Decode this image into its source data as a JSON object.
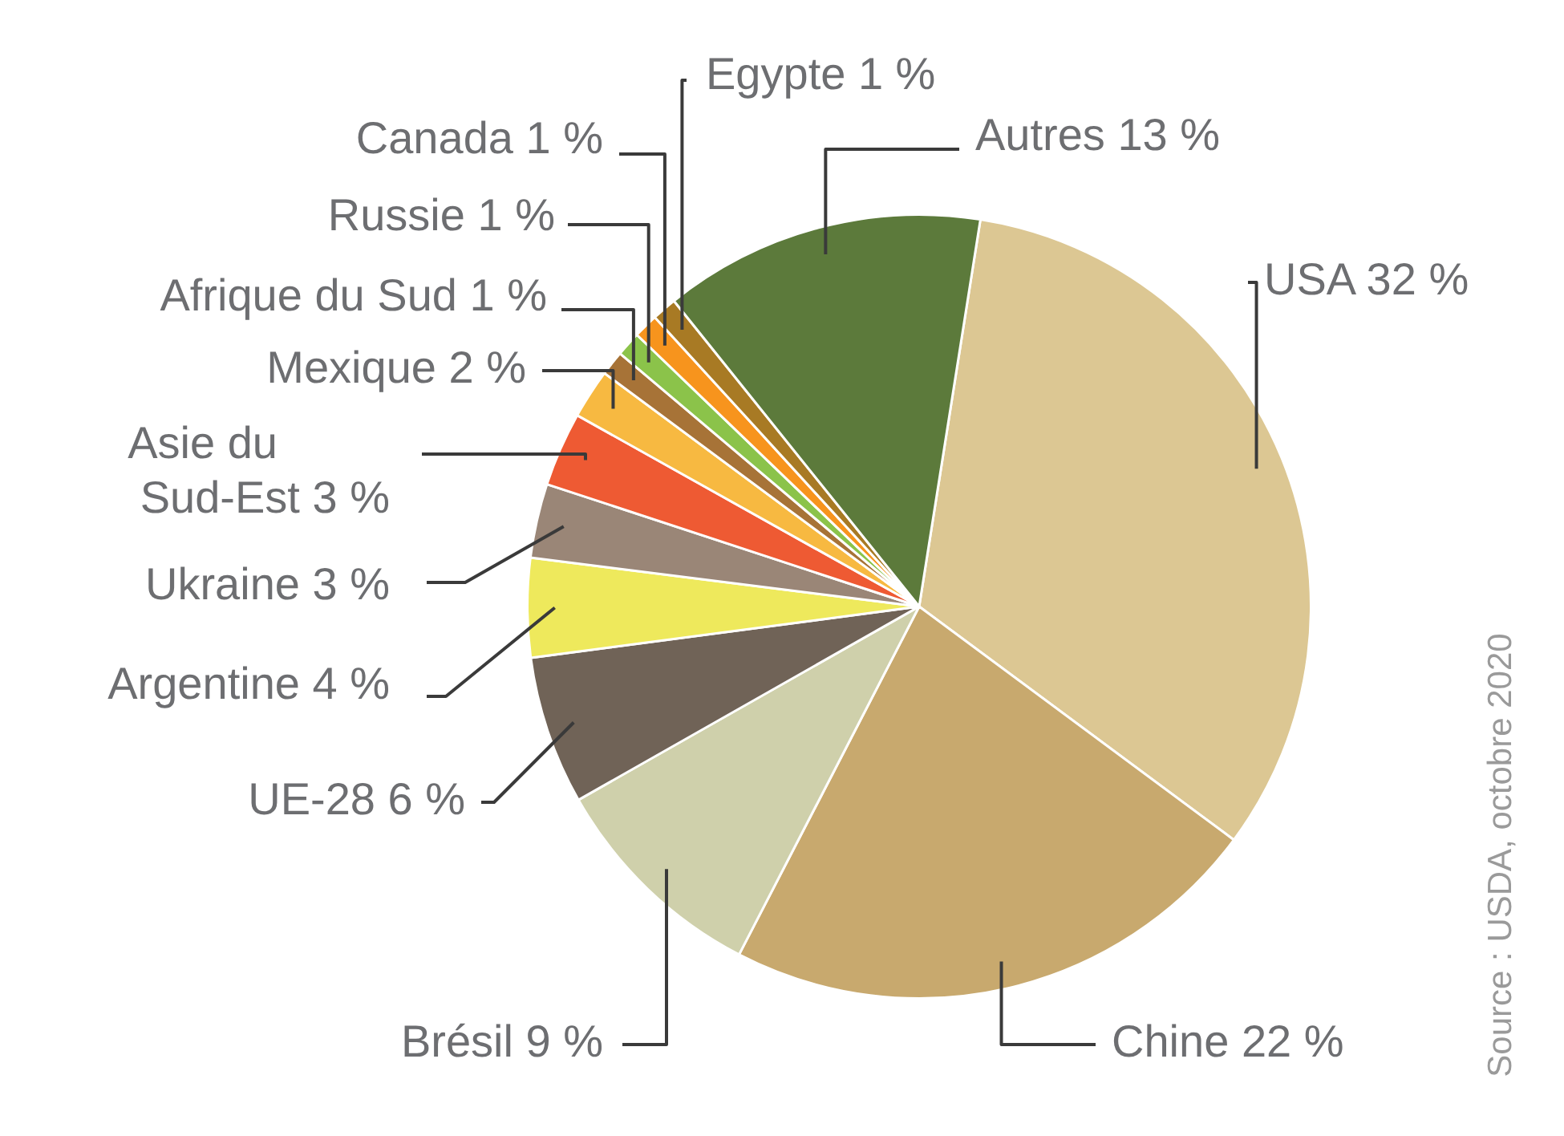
{
  "chart_data": {
    "type": "pie",
    "categories": [
      "USA",
      "Chine",
      "Brésil",
      "UE-28",
      "Argentine",
      "Ukraine",
      "Asie du Sud-Est",
      "Mexique",
      "Afrique du Sud",
      "Russie",
      "Canada",
      "Egypte",
      "Autres"
    ],
    "values": [
      32,
      22,
      9,
      6,
      4,
      3,
      3,
      2,
      1,
      1,
      1,
      1,
      13
    ],
    "value_labels": [
      "32 %",
      "22 %",
      "9 %",
      "6 %",
      "4 %",
      "3 %",
      "3 %",
      "2 %",
      "1 %",
      "1 %",
      "1 %",
      "1 %",
      "13 %"
    ],
    "colors": [
      "#dcc793",
      "#c8a96e",
      "#cfd0ab",
      "#706357",
      "#eee95c",
      "#9a8677",
      "#ee5a33",
      "#f7b941",
      "#a77337",
      "#8bc34a",
      "#f7941d",
      "#a87a24",
      "#5c7a3b"
    ],
    "legend": false,
    "annotations": [
      "Source : USDA, octobre 2020"
    ]
  }
}
